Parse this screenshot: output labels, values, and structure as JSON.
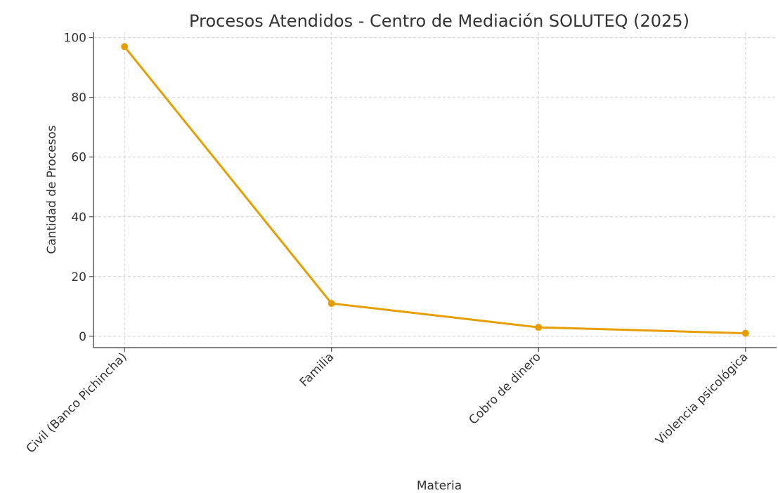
{
  "chart_data": {
    "type": "line",
    "title": "Procesos Atendidos - Centro de Mediación SOLUTEQ (2025)",
    "x_label": "Materia",
    "y_label": "Cantidad de Procesos",
    "categories": [
      "Civil (Banco Pichincha)",
      "Familia",
      "Cobro de dinero",
      "Violencia psicológica"
    ],
    "series": [
      {
        "name": "Procesos",
        "color": "#e69f00",
        "values": [
          97,
          11,
          3,
          1
        ]
      }
    ],
    "ylim": [
      -3.8,
      101.8
    ],
    "yticks": [
      0,
      20,
      40,
      60,
      80,
      100
    ],
    "grid": true
  }
}
